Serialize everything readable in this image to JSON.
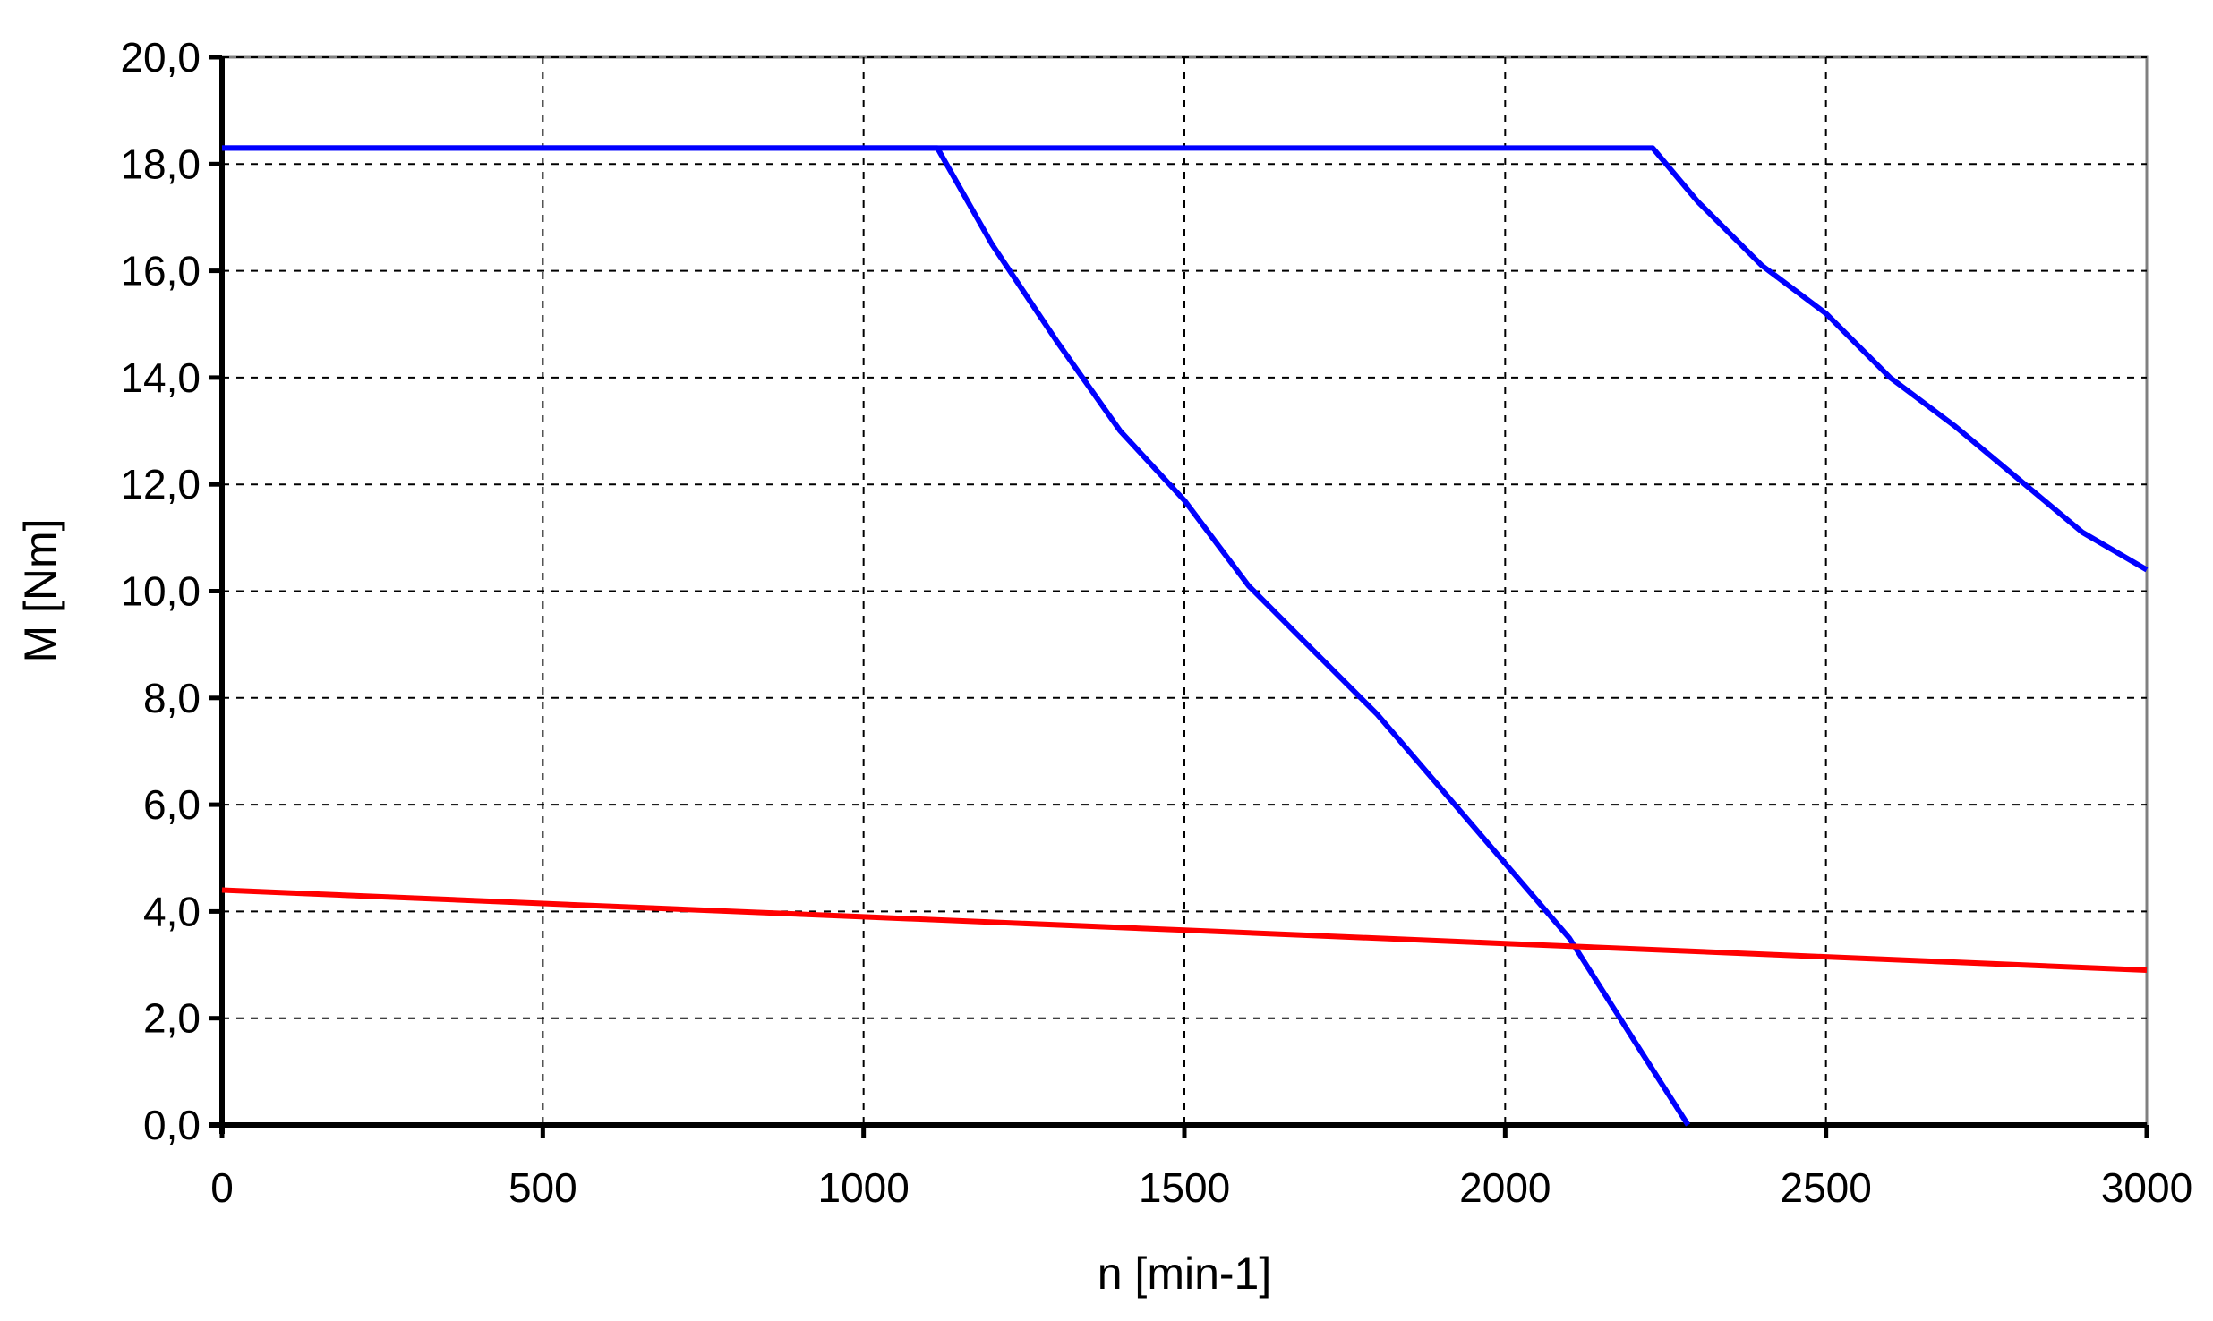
{
  "chart_data": {
    "type": "line",
    "xlabel": "n [min-1]",
    "ylabel": "M [Nm]",
    "xlim": [
      0,
      3000
    ],
    "ylim": [
      0,
      20
    ],
    "x_ticks": [
      0,
      500,
      1000,
      1500,
      2000,
      2500,
      3000
    ],
    "x_tick_labels": [
      "0",
      "500",
      "1000",
      "1500",
      "2000",
      "2500",
      "3000"
    ],
    "y_ticks": [
      0,
      2,
      4,
      6,
      8,
      10,
      12,
      14,
      16,
      18,
      20
    ],
    "y_tick_labels": [
      "0,0",
      "2,0",
      "4,0",
      "6,0",
      "8,0",
      "10,0",
      "12,0",
      "14,0",
      "16,0",
      "18,0",
      "20,0"
    ],
    "grid": true,
    "legend": "none",
    "series": [
      {
        "color": "#0000ff",
        "x": [
          0,
          1115,
          1200,
          1300,
          1400,
          1500,
          1600,
          1700,
          1800,
          1900,
          2000,
          2100,
          2200,
          2285
        ],
        "y": [
          18.3,
          18.3,
          16.5,
          14.7,
          13.0,
          11.7,
          10.1,
          8.9,
          7.7,
          6.3,
          4.9,
          3.5,
          1.6,
          0.0
        ]
      },
      {
        "color": "#0000ff",
        "x": [
          0,
          2230,
          2300,
          2400,
          2500,
          2600,
          2700,
          2800,
          2900,
          3000
        ],
        "y": [
          18.3,
          18.3,
          17.3,
          16.1,
          15.2,
          14.0,
          13.1,
          12.1,
          11.1,
          10.4
        ]
      },
      {
        "color": "#ff0000",
        "x": [
          0,
          500,
          1000,
          1500,
          2000,
          2500,
          3000
        ],
        "y": [
          4.4,
          4.15,
          3.9,
          3.65,
          3.4,
          3.15,
          2.9
        ]
      }
    ]
  }
}
